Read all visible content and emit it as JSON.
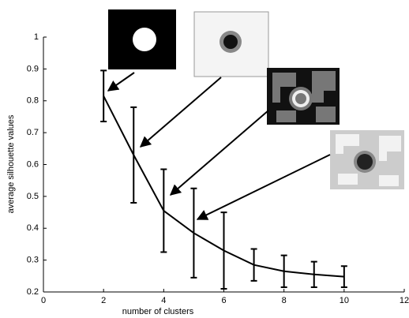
{
  "chart_data": {
    "type": "line",
    "x_label": "number of clusters",
    "y_label": "average silhouette values",
    "x": [
      2,
      3,
      4,
      5,
      6,
      7,
      8,
      9,
      10
    ],
    "values": [
      0.815,
      0.63,
      0.455,
      0.385,
      0.33,
      0.285,
      0.265,
      0.255,
      0.248
    ],
    "errors": [
      0.08,
      0.15,
      0.13,
      0.14,
      0.12,
      0.05,
      0.05,
      0.04,
      0.033
    ],
    "color": "#000000",
    "xlim": [
      0,
      12
    ],
    "xticks": [
      0,
      2,
      4,
      6,
      8,
      10,
      12
    ],
    "ylim": [
      0.2,
      1
    ],
    "yticks": [
      0.2,
      0.3,
      0.4,
      0.5,
      0.6,
      0.7,
      0.8,
      0.9,
      1
    ]
  }
}
